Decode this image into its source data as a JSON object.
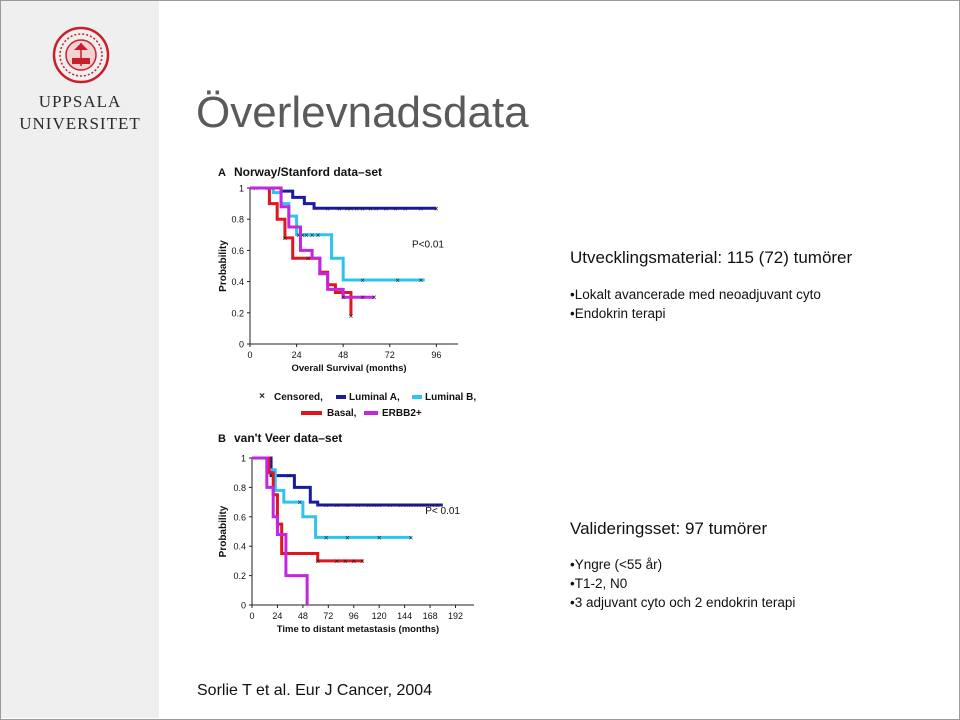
{
  "slide": {
    "title": "Överlevnadsdata",
    "logo": {
      "line1": "UPPSALA",
      "line2": "UNIVERSITET"
    },
    "citation": "Sorlie T et al. Eur J Cancer, 2004"
  },
  "text_blocks": {
    "development": {
      "heading": "Utvecklingsmaterial: 115  (72) tumörer",
      "bullets": [
        "•Lokalt avancerade med neoadjuvant cyto",
        "•Endokrin terapi"
      ]
    },
    "validation": {
      "heading": "Valideringsset: 97 tumörer",
      "bullets": [
        "•Yngre (<55 år)",
        "•T1-2, N0",
        "•3 adjuvant cyto och 2 endokrin terapi"
      ]
    }
  },
  "colors": {
    "luminal_a": "#1a1aa0",
    "luminal_b": "#2ec4f0",
    "basal": "#e0161e",
    "erbb2": "#c226e0",
    "censored": "#222222"
  },
  "legend": {
    "censored": "Censored,",
    "luminal_a": "Luminal A,",
    "luminal_b": "Luminal B,",
    "basal": "Basal,",
    "erbb2": "ERBB2+"
  },
  "chart_data": [
    {
      "type": "line",
      "panel_letter": "A",
      "title": "Norway/Stanford data–set",
      "xlabel": "Overall Survival (months)",
      "ylabel": "Probability",
      "xlim": [
        0,
        102
      ],
      "ylim": [
        0,
        1
      ],
      "xticks": [
        0,
        24,
        48,
        72,
        96
      ],
      "xtick_labels": [
        "0",
        "24",
        "48",
        "72",
        "96"
      ],
      "yticks": [
        0,
        0.2,
        0.4,
        0.6,
        0.8,
        1
      ],
      "ytick_labels": [
        "0",
        "0.2",
        "0.4",
        "0.6",
        "0.8",
        "1"
      ],
      "annotation": "P<0.01",
      "series": [
        {
          "key": "luminal_a",
          "x": [
            0,
            10,
            16,
            22,
            28,
            33,
            40,
            46,
            96
          ],
          "y": [
            1,
            1,
            0.98,
            0.94,
            0.9,
            0.87,
            0.87,
            0.87,
            0.87
          ],
          "censored_x": [
            40,
            46,
            50,
            52,
            55,
            58,
            62,
            65,
            70,
            75,
            80,
            88,
            96
          ]
        },
        {
          "key": "luminal_b",
          "x": [
            0,
            6,
            12,
            16,
            20,
            24,
            38,
            42,
            48,
            90
          ],
          "y": [
            1,
            1,
            0.97,
            0.9,
            0.82,
            0.7,
            0.7,
            0.55,
            0.41,
            0.41
          ],
          "censored_x": [
            3,
            25,
            27,
            29,
            32,
            35,
            58,
            76,
            88
          ]
        },
        {
          "key": "basal",
          "x": [
            0,
            6,
            10,
            14,
            18,
            22,
            30,
            36,
            40,
            44,
            48,
            52
          ],
          "y": [
            1,
            1,
            0.9,
            0.8,
            0.68,
            0.55,
            0.55,
            0.46,
            0.38,
            0.33,
            0.33,
            0.18
          ],
          "censored_x": [
            9,
            18,
            30,
            36,
            52
          ]
        },
        {
          "key": "erbb2",
          "x": [
            0,
            10,
            16,
            20,
            26,
            32,
            36,
            40,
            48,
            64
          ],
          "y": [
            1,
            1,
            0.88,
            0.75,
            0.6,
            0.55,
            0.45,
            0.35,
            0.3,
            0.3
          ],
          "censored_x": [
            48,
            58,
            64
          ]
        }
      ]
    },
    {
      "type": "line",
      "panel_letter": "B",
      "title": "van't Veer data–set",
      "xlabel": "Time to distant metastasis (months)",
      "ylabel": "Probability",
      "xlim": [
        0,
        200
      ],
      "ylim": [
        0,
        1
      ],
      "xticks": [
        0,
        24,
        48,
        72,
        96,
        120,
        144,
        168,
        192
      ],
      "xtick_labels": [
        "0",
        "24",
        "48",
        "72",
        "96",
        "120",
        "144",
        "168",
        "192"
      ],
      "yticks": [
        0,
        0.2,
        0.4,
        0.6,
        0.8,
        1
      ],
      "ytick_labels": [
        "0",
        "0.2",
        "0.4",
        "0.6",
        "0.8",
        "1"
      ],
      "annotation": "P< 0.01",
      "series": [
        {
          "key": "luminal_a",
          "x": [
            0,
            10,
            18,
            40,
            55,
            62,
            180
          ],
          "y": [
            1,
            1,
            0.88,
            0.8,
            0.7,
            0.68,
            0.68
          ],
          "censored_x": [
            35,
            70,
            80,
            90,
            100,
            110,
            115,
            120,
            130,
            140,
            145,
            150,
            155,
            160,
            165,
            170,
            175
          ]
        },
        {
          "key": "luminal_b",
          "x": [
            0,
            8,
            14,
            22,
            30,
            48,
            60,
            150
          ],
          "y": [
            1,
            1,
            0.92,
            0.78,
            0.7,
            0.6,
            0.46,
            0.46
          ],
          "censored_x": [
            45,
            70,
            90,
            120,
            150
          ]
        },
        {
          "key": "basal",
          "x": [
            0,
            10,
            16,
            20,
            24,
            28,
            56,
            62,
            105
          ],
          "y": [
            1,
            1,
            0.9,
            0.75,
            0.55,
            0.35,
            0.35,
            0.3,
            0.3
          ],
          "censored_x": [
            62,
            80,
            88,
            96,
            104
          ]
        },
        {
          "key": "erbb2",
          "x": [
            0,
            6,
            14,
            20,
            24,
            32,
            52,
            52
          ],
          "y": [
            1,
            1,
            0.8,
            0.6,
            0.48,
            0.2,
            0.05,
            0
          ],
          "censored_x": []
        }
      ]
    }
  ]
}
